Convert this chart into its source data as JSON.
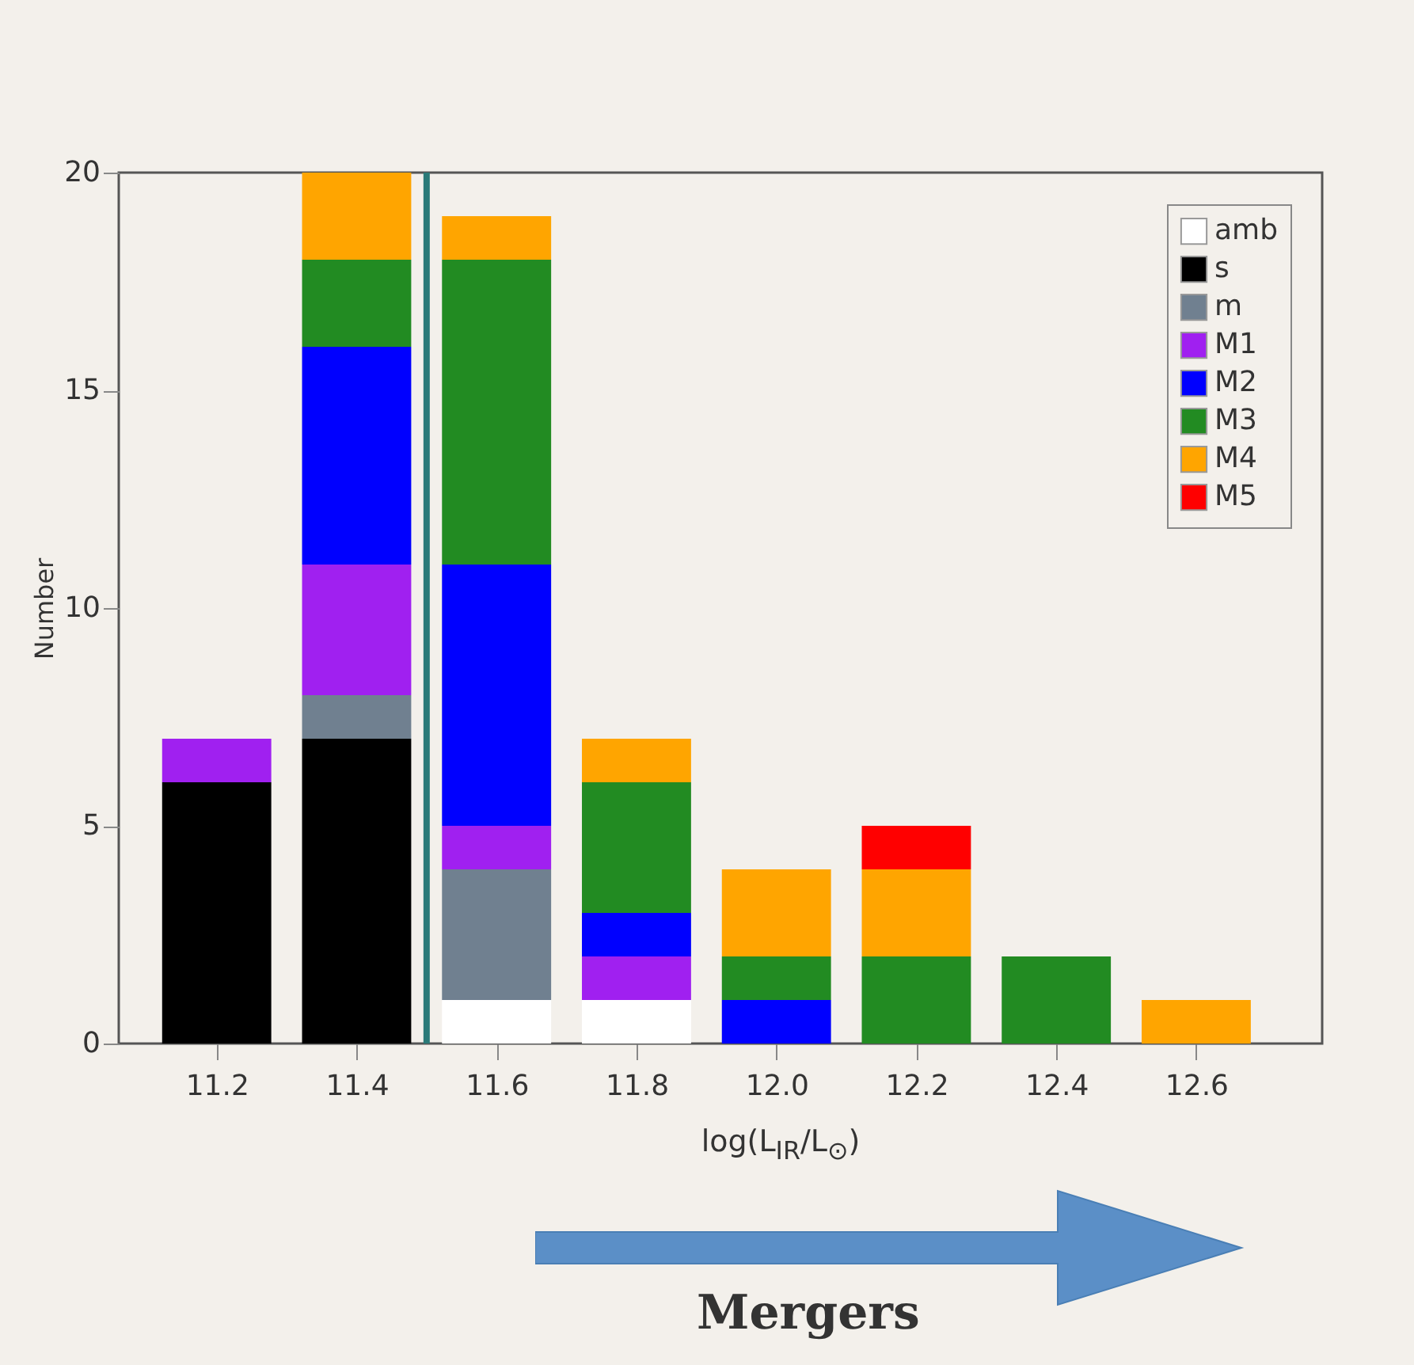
{
  "chart_data": {
    "type": "bar",
    "stacked": true,
    "xlabel": "log(L$_{IR}$/L$_{⊙}$)",
    "ylabel": "Number",
    "x": [
      11.2,
      11.4,
      11.6,
      11.8,
      12.0,
      12.2,
      12.4,
      12.6
    ],
    "xlim": [
      11.06,
      12.78
    ],
    "xticks": [
      {
        "value": 11.2,
        "label": "11.2"
      },
      {
        "value": 11.4,
        "label": "11.4"
      },
      {
        "value": 11.6,
        "label": "11.6"
      },
      {
        "value": 11.8,
        "label": "11.8"
      },
      {
        "value": 12.0,
        "label": "12.0"
      },
      {
        "value": 12.2,
        "label": "12.2"
      },
      {
        "value": 12.4,
        "label": "12.4"
      },
      {
        "value": 12.6,
        "label": "12.6"
      }
    ],
    "ylim": [
      0,
      20
    ],
    "yticks": [
      0,
      5,
      10,
      15,
      20
    ],
    "grid": false,
    "legend": "top right",
    "series": [
      {
        "name": "amb",
        "color": "#ffffff",
        "values": [
          null,
          null,
          1,
          1,
          null,
          null,
          null,
          null
        ]
      },
      {
        "name": "s",
        "color": "#000000",
        "values": [
          6,
          7,
          null,
          null,
          null,
          null,
          null,
          null
        ]
      },
      {
        "name": "m",
        "color": "#708090",
        "values": [
          null,
          1,
          3,
          null,
          null,
          null,
          null,
          null
        ]
      },
      {
        "name": "M1",
        "color": "#a020f0",
        "values": [
          1,
          3,
          1,
          1,
          null,
          null,
          null,
          null
        ]
      },
      {
        "name": "M2",
        "color": "#0000ff",
        "values": [
          null,
          5,
          6,
          1,
          1,
          null,
          null,
          null
        ]
      },
      {
        "name": "M3",
        "color": "#228b22",
        "values": [
          null,
          2,
          7,
          3,
          1,
          2,
          2,
          null
        ]
      },
      {
        "name": "M4",
        "color": "#ffa500",
        "values": [
          null,
          2,
          1,
          1,
          2,
          2,
          null,
          1
        ]
      },
      {
        "name": "M5",
        "color": "#ff0000",
        "values": [
          null,
          null,
          null,
          null,
          null,
          1,
          null,
          null
        ]
      }
    ],
    "ref_lines": [
      {
        "axis": "x",
        "value": 11.5,
        "color": "#2a7a78"
      }
    ],
    "annotations": [
      "Mergers"
    ]
  }
}
